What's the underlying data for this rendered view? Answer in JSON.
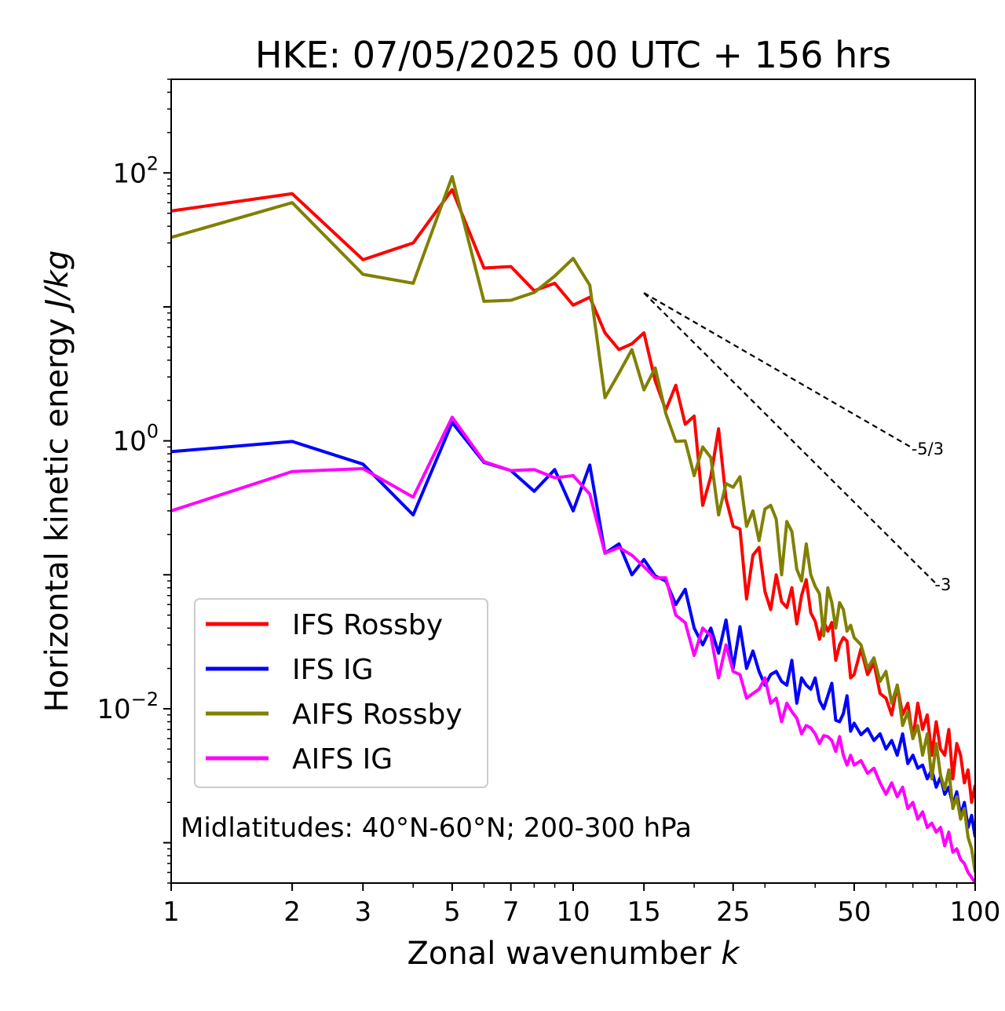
{
  "chart_data": {
    "type": "line",
    "title": "HKE: 07/05/2025 00 UTC + 156 hrs",
    "xlabel": "Zonal wavenumber",
    "xlabel_var": "k",
    "ylabel": "Horizontal kinetic energy",
    "ylabel_unit": "J/kg",
    "xscale": "log",
    "yscale": "log",
    "xlim": [
      1,
      100
    ],
    "ylim": [
      0.0005,
      500
    ],
    "grid": false,
    "legend_position": "lower-left",
    "x_ticks": [
      {
        "value": 1,
        "label": "1"
      },
      {
        "value": 2,
        "label": "2"
      },
      {
        "value": 3,
        "label": "3"
      },
      {
        "value": 5,
        "label": "5"
      },
      {
        "value": 7,
        "label": "7"
      },
      {
        "value": 10,
        "label": "10"
      },
      {
        "value": 15,
        "label": "15"
      },
      {
        "value": 25,
        "label": "25"
      },
      {
        "value": 50,
        "label": "50"
      },
      {
        "value": 100,
        "label": "100"
      }
    ],
    "y_ticks": [
      {
        "value": 0.01,
        "base": "10",
        "exp": "−2"
      },
      {
        "value": 1,
        "base": "10",
        "exp": "0"
      },
      {
        "value": 100,
        "base": "10",
        "exp": "2"
      }
    ],
    "annotation": "Midlatitudes: 40°N-60°N; 200-300 hPa",
    "reference_slopes": [
      {
        "label": "-5/3",
        "x": [
          15,
          70
        ],
        "y": [
          12.7,
          0.88
        ]
      },
      {
        "label": "-3",
        "x": [
          15,
          80
        ],
        "y": [
          12.7,
          0.0856
        ]
      }
    ],
    "series": [
      {
        "name": "IFS Rossby",
        "color": "#ff0000",
        "values": [
          [
            1,
            52
          ],
          [
            2,
            70
          ],
          [
            3,
            22.5
          ],
          [
            4,
            30
          ],
          [
            5,
            75
          ],
          [
            6,
            19.5
          ],
          [
            7,
            20
          ],
          [
            8,
            13.2
          ],
          [
            9,
            15
          ],
          [
            10,
            10.3
          ],
          [
            11,
            11.8
          ],
          [
            12,
            6.4
          ],
          [
            13,
            4.8
          ],
          [
            14,
            5.3
          ],
          [
            15,
            6.4
          ],
          [
            16,
            2.8
          ],
          [
            17,
            1.7
          ],
          [
            18,
            2.6
          ],
          [
            19,
            1.33
          ],
          [
            20,
            1.53
          ],
          [
            21,
            0.33
          ],
          [
            22,
            0.54
          ],
          [
            23,
            1.23
          ],
          [
            24,
            0.37
          ],
          [
            25,
            0.23
          ],
          [
            26,
            0.22
          ],
          [
            27,
            0.066
          ],
          [
            28,
            0.14
          ],
          [
            29,
            0.16
          ],
          [
            30,
            0.075
          ],
          [
            31,
            0.055
          ],
          [
            32,
            0.1
          ],
          [
            33,
            0.063
          ],
          [
            34,
            0.057
          ],
          [
            35,
            0.08
          ],
          [
            36,
            0.043
          ],
          [
            37,
            0.07
          ],
          [
            38,
            0.092
          ],
          [
            39,
            0.052
          ],
          [
            40,
            0.045
          ],
          [
            41,
            0.033
          ],
          [
            42,
            0.045
          ],
          [
            43,
            0.038
          ],
          [
            44,
            0.044
          ],
          [
            45,
            0.023
          ],
          [
            46,
            0.03
          ],
          [
            47,
            0.034
          ],
          [
            48,
            0.032
          ],
          [
            49,
            0.017
          ],
          [
            50,
            0.018
          ],
          [
            52,
            0.028
          ],
          [
            54,
            0.018
          ],
          [
            56,
            0.022
          ],
          [
            58,
            0.013
          ],
          [
            60,
            0.012
          ],
          [
            62,
            0.009
          ],
          [
            64,
            0.015
          ],
          [
            66,
            0.009
          ],
          [
            68,
            0.011
          ],
          [
            70,
            0.006
          ],
          [
            72,
            0.011
          ],
          [
            74,
            0.007
          ],
          [
            76,
            0.009
          ],
          [
            78,
            0.0045
          ],
          [
            80,
            0.008
          ],
          [
            82,
            0.005
          ],
          [
            84,
            0.0045
          ],
          [
            86,
            0.007
          ],
          [
            88,
            0.003
          ],
          [
            90,
            0.0055
          ],
          [
            92,
            0.0045
          ],
          [
            94,
            0.0028
          ],
          [
            96,
            0.0035
          ],
          [
            98,
            0.002
          ],
          [
            100,
            0.0027
          ]
        ]
      },
      {
        "name": "IFS IG",
        "color": "#0000ff",
        "values": [
          [
            1,
            0.83
          ],
          [
            2,
            0.99
          ],
          [
            3,
            0.67
          ],
          [
            4,
            0.28
          ],
          [
            5,
            1.37
          ],
          [
            6,
            0.69
          ],
          [
            7,
            0.6
          ],
          [
            8,
            0.42
          ],
          [
            9,
            0.61
          ],
          [
            10,
            0.3
          ],
          [
            11,
            0.66
          ],
          [
            12,
            0.145
          ],
          [
            13,
            0.17
          ],
          [
            14,
            0.1
          ],
          [
            15,
            0.13
          ],
          [
            16,
            0.098
          ],
          [
            17,
            0.09
          ],
          [
            18,
            0.06
          ],
          [
            19,
            0.078
          ],
          [
            20,
            0.04
          ],
          [
            21,
            0.03
          ],
          [
            22,
            0.04
          ],
          [
            23,
            0.026
          ],
          [
            24,
            0.046
          ],
          [
            25,
            0.02
          ],
          [
            26,
            0.041
          ],
          [
            27,
            0.02
          ],
          [
            28,
            0.027
          ],
          [
            29,
            0.019
          ],
          [
            30,
            0.015
          ],
          [
            31,
            0.018
          ],
          [
            32,
            0.019
          ],
          [
            33,
            0.016
          ],
          [
            34,
            0.015
          ],
          [
            35,
            0.023
          ],
          [
            36,
            0.011
          ],
          [
            37,
            0.017
          ],
          [
            38,
            0.015
          ],
          [
            39,
            0.014
          ],
          [
            40,
            0.017
          ],
          [
            41,
            0.0115
          ],
          [
            42,
            0.01
          ],
          [
            43,
            0.0125
          ],
          [
            44,
            0.0155
          ],
          [
            45,
            0.0082
          ],
          [
            46,
            0.008
          ],
          [
            47,
            0.0092
          ],
          [
            48,
            0.0125
          ],
          [
            49,
            0.0068
          ],
          [
            50,
            0.0078
          ],
          [
            52,
            0.0064
          ],
          [
            54,
            0.0071
          ],
          [
            56,
            0.0058
          ],
          [
            58,
            0.0065
          ],
          [
            60,
            0.005
          ],
          [
            62,
            0.0058
          ],
          [
            64,
            0.0045
          ],
          [
            66,
            0.0065
          ],
          [
            68,
            0.0039
          ],
          [
            70,
            0.0045
          ],
          [
            72,
            0.0036
          ],
          [
            74,
            0.0038
          ],
          [
            76,
            0.003
          ],
          [
            78,
            0.0035
          ],
          [
            80,
            0.0026
          ],
          [
            82,
            0.0031
          ],
          [
            84,
            0.0023
          ],
          [
            86,
            0.0026
          ],
          [
            88,
            0.0019
          ],
          [
            90,
            0.0024
          ],
          [
            92,
            0.0016
          ],
          [
            94,
            0.002
          ],
          [
            96,
            0.0013
          ],
          [
            98,
            0.0016
          ],
          [
            100,
            0.0011
          ]
        ]
      },
      {
        "name": "AIFS Rossby",
        "color": "#808000",
        "values": [
          [
            1,
            33
          ],
          [
            2,
            60
          ],
          [
            3,
            17.5
          ],
          [
            4,
            15
          ],
          [
            5,
            94
          ],
          [
            6,
            11
          ],
          [
            7,
            11.2
          ],
          [
            8,
            12.8
          ],
          [
            9,
            17
          ],
          [
            10,
            23
          ],
          [
            11,
            14.5
          ],
          [
            12,
            2.1
          ],
          [
            13,
            3.2
          ],
          [
            14,
            4.8
          ],
          [
            15,
            2.4
          ],
          [
            16,
            3.5
          ],
          [
            17,
            1.6
          ],
          [
            18,
            0.99
          ],
          [
            19,
            1.0
          ],
          [
            20,
            0.55
          ],
          [
            21,
            0.9
          ],
          [
            22,
            0.75
          ],
          [
            23,
            0.28
          ],
          [
            24,
            0.48
          ],
          [
            25,
            0.45
          ],
          [
            26,
            0.54
          ],
          [
            27,
            0.23
          ],
          [
            28,
            0.3
          ],
          [
            29,
            0.18
          ],
          [
            30,
            0.31
          ],
          [
            31,
            0.33
          ],
          [
            32,
            0.26
          ],
          [
            33,
            0.1
          ],
          [
            34,
            0.25
          ],
          [
            35,
            0.21
          ],
          [
            36,
            0.11
          ],
          [
            37,
            0.09
          ],
          [
            38,
            0.17
          ],
          [
            39,
            0.1
          ],
          [
            40,
            0.082
          ],
          [
            41,
            0.072
          ],
          [
            42,
            0.035
          ],
          [
            43,
            0.08
          ],
          [
            44,
            0.062
          ],
          [
            45,
            0.04
          ],
          [
            46,
            0.062
          ],
          [
            47,
            0.055
          ],
          [
            48,
            0.038
          ],
          [
            49,
            0.042
          ],
          [
            50,
            0.034
          ],
          [
            52,
            0.03
          ],
          [
            54,
            0.02
          ],
          [
            56,
            0.024
          ],
          [
            58,
            0.016
          ],
          [
            60,
            0.019
          ],
          [
            62,
            0.011
          ],
          [
            64,
            0.015
          ],
          [
            66,
            0.0075
          ],
          [
            68,
            0.0095
          ],
          [
            70,
            0.006
          ],
          [
            72,
            0.0075
          ],
          [
            74,
            0.0045
          ],
          [
            76,
            0.0065
          ],
          [
            78,
            0.003
          ],
          [
            80,
            0.0055
          ],
          [
            82,
            0.0032
          ],
          [
            84,
            0.0025
          ],
          [
            86,
            0.0035
          ],
          [
            88,
            0.0018
          ],
          [
            90,
            0.0022
          ],
          [
            92,
            0.0015
          ],
          [
            94,
            0.0018
          ],
          [
            96,
            0.0011
          ],
          [
            98,
            0.0009
          ],
          [
            100,
            0.0006
          ]
        ]
      },
      {
        "name": "AIFS IG",
        "color": "#ff00ff",
        "values": [
          [
            1,
            0.3
          ],
          [
            2,
            0.59
          ],
          [
            3,
            0.62
          ],
          [
            4,
            0.38
          ],
          [
            5,
            1.5
          ],
          [
            6,
            0.7
          ],
          [
            7,
            0.6
          ],
          [
            8,
            0.61
          ],
          [
            9,
            0.53
          ],
          [
            10,
            0.55
          ],
          [
            11,
            0.4
          ],
          [
            12,
            0.145
          ],
          [
            13,
            0.16
          ],
          [
            14,
            0.14
          ],
          [
            15,
            0.115
          ],
          [
            16,
            0.095
          ],
          [
            17,
            0.095
          ],
          [
            18,
            0.05
          ],
          [
            19,
            0.044
          ],
          [
            20,
            0.025
          ],
          [
            21,
            0.04
          ],
          [
            22,
            0.035
          ],
          [
            23,
            0.017
          ],
          [
            24,
            0.03
          ],
          [
            25,
            0.019
          ],
          [
            26,
            0.018
          ],
          [
            27,
            0.012
          ],
          [
            28,
            0.013
          ],
          [
            29,
            0.014
          ],
          [
            30,
            0.017
          ],
          [
            31,
            0.011
          ],
          [
            32,
            0.012
          ],
          [
            33,
            0.008
          ],
          [
            34,
            0.011
          ],
          [
            35,
            0.0095
          ],
          [
            36,
            0.0085
          ],
          [
            37,
            0.0065
          ],
          [
            38,
            0.0075
          ],
          [
            39,
            0.0072
          ],
          [
            40,
            0.0065
          ],
          [
            41,
            0.0055
          ],
          [
            42,
            0.0063
          ],
          [
            43,
            0.0062
          ],
          [
            44,
            0.0058
          ],
          [
            45,
            0.0048
          ],
          [
            46,
            0.0062
          ],
          [
            47,
            0.0045
          ],
          [
            48,
            0.0038
          ],
          [
            49,
            0.0045
          ],
          [
            50,
            0.0038
          ],
          [
            52,
            0.0041
          ],
          [
            54,
            0.0033
          ],
          [
            56,
            0.0036
          ],
          [
            58,
            0.0028
          ],
          [
            60,
            0.0023
          ],
          [
            62,
            0.0028
          ],
          [
            64,
            0.0022
          ],
          [
            66,
            0.0026
          ],
          [
            68,
            0.0018
          ],
          [
            70,
            0.002
          ],
          [
            72,
            0.0015
          ],
          [
            74,
            0.0017
          ],
          [
            76,
            0.0013
          ],
          [
            78,
            0.0014
          ],
          [
            80,
            0.0012
          ],
          [
            82,
            0.0013
          ],
          [
            84,
            0.00095
          ],
          [
            86,
            0.0012
          ],
          [
            88,
            0.00085
          ],
          [
            90,
            0.0009
          ],
          [
            92,
            0.00075
          ],
          [
            94,
            0.0007
          ],
          [
            96,
            0.0006
          ],
          [
            98,
            0.00055
          ],
          [
            100,
            0.0005
          ]
        ]
      }
    ]
  }
}
